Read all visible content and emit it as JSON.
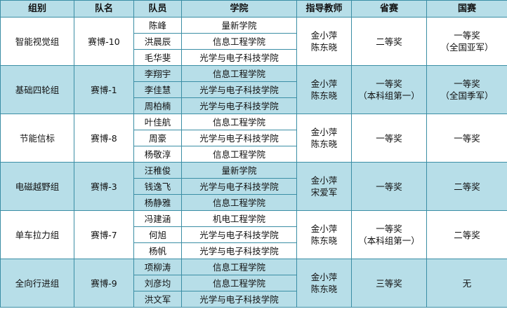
{
  "headers": [
    "组别",
    "队名",
    "队员",
    "学院",
    "指导教师",
    "省赛",
    "国赛"
  ],
  "colors": {
    "header": "#b7dee8",
    "border": "#3b8ea5",
    "alt_row": "#b7dee8"
  },
  "groups": [
    {
      "group": "智能视觉组",
      "team": "赛博-10",
      "members": [
        {
          "name": "陈峰",
          "college": "量新学院"
        },
        {
          "name": "洪晨辰",
          "college": "信息工程学院"
        },
        {
          "name": "毛华斐",
          "college": "光学与电子科技学院"
        }
      ],
      "advisors": [
        "金小萍",
        "陈东晓"
      ],
      "provincial": [
        "二等奖",
        ""
      ],
      "national": [
        "一等奖",
        "（全国亚军）"
      ]
    },
    {
      "group": "基础四轮组",
      "team": "赛博-1",
      "members": [
        {
          "name": "李翔宇",
          "college": "信息工程学院"
        },
        {
          "name": "李佳慧",
          "college": "光学与电子科技学院"
        },
        {
          "name": "周柏楠",
          "college": "光学与电子科技学院"
        }
      ],
      "advisors": [
        "金小萍",
        "陈东晓"
      ],
      "provincial": [
        "一等奖",
        "（本科组第一）"
      ],
      "national": [
        "一等奖",
        "（全国季军）"
      ]
    },
    {
      "group": "节能信标",
      "team": "赛博-8",
      "members": [
        {
          "name": "叶佳航",
          "college": "信息工程学院"
        },
        {
          "name": "周豪",
          "college": "光学与电子科技学院"
        },
        {
          "name": "杨敬淳",
          "college": "信息工程学院"
        }
      ],
      "advisors": [
        "金小萍",
        "陈东晓"
      ],
      "provincial": [
        "一等奖",
        ""
      ],
      "national": [
        "一等奖",
        ""
      ]
    },
    {
      "group": "电磁越野组",
      "team": "赛博-3",
      "members": [
        {
          "name": "汪稚俊",
          "college": "量新学院"
        },
        {
          "name": "钱逸飞",
          "college": "光学与电子科技学院"
        },
        {
          "name": "杨静雅",
          "college": "信息工程学院"
        }
      ],
      "advisors": [
        "金小萍",
        "宋爱军"
      ],
      "provincial": [
        "一等奖",
        ""
      ],
      "national": [
        "二等奖",
        ""
      ]
    },
    {
      "group": "单车拉力组",
      "team": "赛博-7",
      "members": [
        {
          "name": "冯建涵",
          "college": "机电工程学院"
        },
        {
          "name": "何旭",
          "college": "光学与电子科技学院"
        },
        {
          "name": "杨帆",
          "college": "光学与电子科技学院"
        }
      ],
      "advisors": [
        "金小萍",
        "陈东晓"
      ],
      "provincial": [
        "一等奖",
        "（本科组第一）"
      ],
      "national": [
        "二等奖",
        ""
      ]
    },
    {
      "group": "全向行进组",
      "team": "赛博-9",
      "members": [
        {
          "name": "项柳涛",
          "college": "信息工程学院"
        },
        {
          "name": "刘彦均",
          "college": "信息工程学院"
        },
        {
          "name": "洪文军",
          "college": "光学与电子科技学院"
        }
      ],
      "advisors": [
        "金小萍",
        "陈东晓"
      ],
      "provincial": [
        "三等奖",
        ""
      ],
      "national": [
        "无",
        ""
      ]
    }
  ]
}
